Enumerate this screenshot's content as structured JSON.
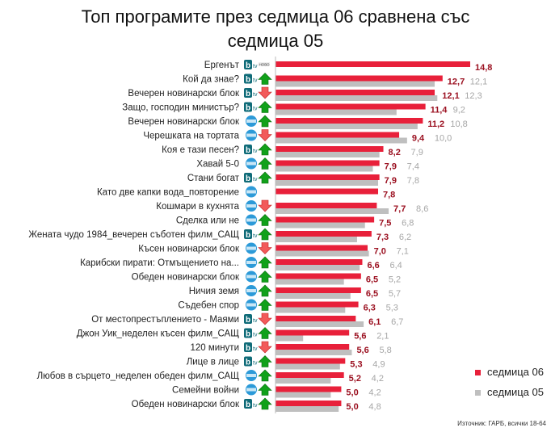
{
  "chart_data": {
    "type": "bar",
    "orientation": "horizontal",
    "title": "Топ програмите през седмица 06 сравнена със седмица 05",
    "title_lines": [
      "Топ програмите през седмица 06 сравнена със",
      "седмица 05"
    ],
    "xlim": [
      0,
      15
    ],
    "series": [
      {
        "name": "седмица 06",
        "color": "#e8203a",
        "label_color": "#9b1020"
      },
      {
        "name": "седмица 05",
        "color": "#bfbfbf",
        "label_color": "#a6a6a6"
      }
    ],
    "rows": [
      {
        "label": "Ергенът",
        "channel": "btv",
        "trend": "novo",
        "w06": 14.8,
        "w05": null
      },
      {
        "label": "Кой да знае?",
        "channel": "btv",
        "trend": "up",
        "w06": 12.7,
        "w05": 12.1
      },
      {
        "label": "Вечерен новинарски блок",
        "channel": "btv",
        "trend": "down",
        "w06": 12.1,
        "w05": 12.3
      },
      {
        "label": "Защо, господин министър?",
        "channel": "btv",
        "trend": "up",
        "w06": 11.4,
        "w05": 9.2
      },
      {
        "label": "Вечерен новинарски блок",
        "channel": "nova",
        "trend": "up",
        "w06": 11.2,
        "w05": 10.8
      },
      {
        "label": "Черешката на тортата",
        "channel": "nova",
        "trend": "down",
        "w06": 9.4,
        "w05": 10.0
      },
      {
        "label": "Коя е тази песен?",
        "channel": "btv",
        "trend": "up",
        "w06": 8.2,
        "w05": 7.9
      },
      {
        "label": "Хавай 5-0",
        "channel": "nova",
        "trend": "up",
        "w06": 7.9,
        "w05": 7.4
      },
      {
        "label": "Стани богат",
        "channel": "btv",
        "trend": "up",
        "w06": 7.9,
        "w05": 7.8
      },
      {
        "label": "Като две капки вода_повторение",
        "channel": "nova",
        "trend": "none",
        "w06": 7.8,
        "w05": null
      },
      {
        "label": "Кошмари в кухнята",
        "channel": "nova",
        "trend": "down",
        "w06": 7.7,
        "w05": 8.6
      },
      {
        "label": "Сделка или не",
        "channel": "nova",
        "trend": "up",
        "w06": 7.5,
        "w05": 6.8
      },
      {
        "label": "Жената чудо 1984_вечерен съботен филм_САЩ",
        "channel": "btv",
        "trend": "up",
        "w06": 7.3,
        "w05": 6.2
      },
      {
        "label": "Късен новинарски блок",
        "channel": "nova",
        "trend": "down",
        "w06": 7.0,
        "w05": 7.1
      },
      {
        "label": "Карибски пирати: Отмъщението на...",
        "channel": "nova",
        "trend": "up",
        "w06": 6.6,
        "w05": 6.4
      },
      {
        "label": "Обеден новинарски блок",
        "channel": "nova",
        "trend": "up",
        "w06": 6.5,
        "w05": 5.2
      },
      {
        "label": "Ничия земя",
        "channel": "nova",
        "trend": "up",
        "w06": 6.5,
        "w05": 5.7
      },
      {
        "label": "Съдебен спор",
        "channel": "nova",
        "trend": "up",
        "w06": 6.3,
        "w05": 5.3
      },
      {
        "label": "От местопрестъплението - Маями",
        "channel": "btv",
        "trend": "down",
        "w06": 6.1,
        "w05": 6.7
      },
      {
        "label": "Джон Уик_неделен късен филм_САЩ",
        "channel": "btv",
        "trend": "up",
        "w06": 5.6,
        "w05": 2.1
      },
      {
        "label": "120 минути",
        "channel": "btv",
        "trend": "down",
        "w06": 5.6,
        "w05": 5.8
      },
      {
        "label": "Лице в лице",
        "channel": "btv",
        "trend": "up",
        "w06": 5.3,
        "w05": 4.9
      },
      {
        "label": "Любов в сърцето_неделен обеден филм_САЩ",
        "channel": "nova",
        "trend": "up",
        "w06": 5.2,
        "w05": 4.2
      },
      {
        "label": "Семейни войни",
        "channel": "nova",
        "trend": "up",
        "w06": 5.0,
        "w05": 4.2
      },
      {
        "label": "Обеден новинарски блок",
        "channel": "btv",
        "trend": "up",
        "w06": 5.0,
        "w05": 4.8
      }
    ],
    "legend": [
      "седмица 06",
      "седмица 05"
    ],
    "legend_position": "bottom-right",
    "novo_label": "НОВО",
    "source": "Източник: ГАРБ, всички 18-64"
  }
}
